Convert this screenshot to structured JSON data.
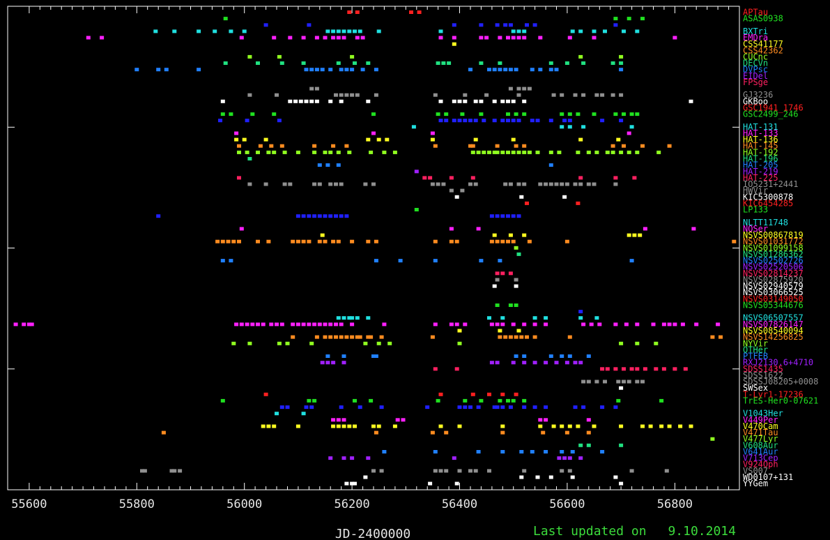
{
  "chart_data": {
    "type": "scatter",
    "xlabel": "JD-2400000",
    "xlim": [
      55560,
      56920
    ],
    "x_ticks": [
      "55600",
      "55800",
      "56000",
      "56200",
      "56400",
      "56600",
      "56800"
    ],
    "footer_label": "Last updated on",
    "footer_date": "9.10.2014",
    "series": [
      {
        "name": "APTau",
        "color": "#ff2020",
        "x": [
          56195,
          56210,
          56310,
          56325
        ]
      },
      {
        "name": "ASAS0938",
        "color": "#20e020",
        "x": [
          55965,
          56690,
          56715,
          56740
        ]
      },
      {
        "name": "",
        "color": "#2020ff",
        "x": [
          56040,
          56120,
          56390,
          56440,
          56470,
          56485,
          56495,
          56525,
          56540,
          56690
        ]
      },
      {
        "name": "BXTri",
        "color": "#20e0e0",
        "x": [
          55835,
          55870,
          55915,
          55945,
          55975,
          56000,
          56155,
          56165,
          56175,
          56185,
          56195,
          56205,
          56215,
          56250,
          56365,
          56500,
          56510,
          56520,
          56610,
          56625,
          56650,
          56670,
          56705,
          56730
        ]
      },
      {
        "name": "EMDra",
        "color": "#ff20ff",
        "x": [
          55710,
          55735,
          55995,
          56055,
          56085,
          56110,
          56135,
          56150,
          56165,
          56175,
          56185,
          56210,
          56220,
          56365,
          56390,
          56440,
          56450,
          56475,
          56490,
          56500,
          56510,
          56520,
          56550,
          56605,
          56650,
          56800
        ]
      },
      {
        "name": "CSS41177",
        "color": "#ffff20",
        "x": [
          56390
        ]
      },
      {
        "name": "CSS42362",
        "color": "#ff8c20",
        "x": []
      },
      {
        "name": "CUCnc",
        "color": "#90ff20",
        "x": [
          56010,
          56065,
          56200,
          56625,
          56700
        ]
      },
      {
        "name": "DECVn",
        "color": "#20e080",
        "x": [
          55965,
          56025,
          56070,
          56110,
          56175,
          56205,
          56230,
          56360,
          56370,
          56380,
          56440,
          56475,
          56570,
          56600,
          56630,
          56685,
          56700
        ]
      },
      {
        "name": "DVPsc",
        "color": "#2080ff",
        "x": [
          55800,
          55840,
          55855,
          55915,
          56115,
          56125,
          56135,
          56145,
          56160,
          56180,
          56190,
          56200,
          56220,
          56245,
          56420,
          56455,
          56465,
          56475,
          56485,
          56495,
          56505,
          56535,
          56550,
          56570,
          56580,
          56700
        ]
      },
      {
        "name": "EIDel",
        "color": "#a020ff",
        "x": []
      },
      {
        "name": "FPSge",
        "color": "#ff2060",
        "x": []
      },
      {
        "name": "",
        "color": "#909090",
        "x": [
          56125,
          56135,
          56495,
          56510,
          56520,
          56530
        ]
      },
      {
        "name": "GJ3236",
        "color": "#909090",
        "x": [
          56010,
          56060,
          56170,
          56180,
          56190,
          56200,
          56210,
          56245,
          56355,
          56410,
          56450,
          56510,
          56575,
          56590,
          56615,
          56630,
          56655,
          56665,
          56685,
          56700
        ]
      },
      {
        "name": "GKBoo",
        "color": "#ffffff",
        "x": [
          55960,
          56085,
          56095,
          56105,
          56115,
          56125,
          56135,
          56160,
          56180,
          56230,
          56365,
          56390,
          56400,
          56410,
          56430,
          56440,
          56465,
          56480,
          56490,
          56500,
          56520,
          56830
        ]
      },
      {
        "name": "GSC1941_1746",
        "color": "#ff2020",
        "x": []
      },
      {
        "name": "GSC2499_246",
        "color": "#20e020",
        "x": [
          55960,
          55975,
          56015,
          56055,
          56240,
          56360,
          56375,
          56405,
          56440,
          56490,
          56505,
          56520,
          56590,
          56605,
          56620,
          56650,
          56690,
          56705,
          56720,
          56730
        ]
      },
      {
        "name": "",
        "color": "#2020ff",
        "x": [
          55955,
          56005,
          56065,
          56365,
          56375,
          56390,
          56400,
          56410,
          56420,
          56430,
          56445,
          56465,
          56480,
          56490,
          56500,
          56510,
          56535,
          56545,
          56570,
          56595,
          56605,
          56665,
          56700
        ]
      },
      {
        "name": "HAT-131",
        "color": "#20e0e0",
        "x": [
          56315,
          56590,
          56605,
          56630,
          56720
        ]
      },
      {
        "name": "HAT-133",
        "color": "#ff20ff",
        "x": [
          55985,
          56240,
          56350,
          56715
        ]
      },
      {
        "name": "HAT-136",
        "color": "#ffff20",
        "x": [
          55985,
          56000,
          56040,
          56230,
          56250,
          56265,
          56350,
          56430,
          56500,
          56625,
          56695
        ]
      },
      {
        "name": "HAT-145",
        "color": "#ff8c20",
        "x": [
          55990,
          56030,
          56050,
          56070,
          56130,
          56165,
          56190,
          56355,
          56420,
          56425,
          56470,
          56505,
          56520,
          56685,
          56705,
          56740,
          56790
        ]
      },
      {
        "name": "HAT-192",
        "color": "#90ff20",
        "x": [
          55990,
          56005,
          56025,
          56045,
          56055,
          56075,
          56100,
          56130,
          56150,
          56160,
          56175,
          56195,
          56235,
          56260,
          56280,
          56425,
          56435,
          56445,
          56455,
          56465,
          56470,
          56480,
          56490,
          56500,
          56510,
          56520,
          56530,
          56545,
          56570,
          56585,
          56620,
          56640,
          56655,
          56675,
          56685,
          56700,
          56715,
          56730,
          56770
        ]
      },
      {
        "name": "HAT-196",
        "color": "#20e080",
        "x": [
          56010
        ]
      },
      {
        "name": "HAT-205",
        "color": "#2080ff",
        "x": [
          56140,
          56155,
          56175,
          56570
        ]
      },
      {
        "name": "HAT-219",
        "color": "#a020ff",
        "x": [
          56320
        ]
      },
      {
        "name": "HAT-225",
        "color": "#ff2060",
        "x": [
          55990,
          56335,
          56345,
          56385,
          56425,
          56625,
          56690,
          56725
        ]
      },
      {
        "name": "IO5231+2441",
        "color": "#909090",
        "x": [
          56010,
          56040,
          56075,
          56085,
          56130,
          56140,
          56160,
          56170,
          56180,
          56225,
          56240,
          56350,
          56360,
          56370,
          56420,
          56430,
          56485,
          56495,
          56510,
          56520,
          56550,
          56560,
          56570,
          56580,
          56590,
          56600,
          56615,
          56625,
          56640,
          56650,
          56690
        ]
      },
      {
        "name": "HWVir",
        "color": "#909090",
        "x": [
          56385,
          56405
        ]
      },
      {
        "name": "KIC5300878",
        "color": "#ffffff",
        "x": [
          56395,
          56515,
          56595
        ]
      },
      {
        "name": "KIC6454285",
        "color": "#ff2020",
        "x": [
          56525,
          56620
        ]
      },
      {
        "name": "LP133",
        "color": "#20e020",
        "x": [
          56320
        ]
      },
      {
        "name": "",
        "color": "#2020ff",
        "x": [
          55840,
          56100,
          56110,
          56120,
          56130,
          56140,
          56150,
          56160,
          56170,
          56180,
          56190,
          56460,
          56470,
          56480,
          56490,
          56500,
          56510
        ]
      },
      {
        "name": "NLTT11748",
        "color": "#20e0e0",
        "x": []
      },
      {
        "name": "NQSer",
        "color": "#ff20ff",
        "x": [
          55995,
          56385,
          56435,
          56745,
          56835
        ]
      },
      {
        "name": "NSVS00867819",
        "color": "#ffff20",
        "x": [
          56145,
          56465,
          56495,
          56520,
          56715,
          56725,
          56735
        ]
      },
      {
        "name": "NSVS01031772",
        "color": "#ff8c20",
        "x": [
          55950,
          55960,
          55970,
          55980,
          55990,
          56025,
          56045,
          56090,
          56100,
          56110,
          56120,
          56140,
          56150,
          56165,
          56175,
          56200,
          56230,
          56245,
          56355,
          56385,
          56395,
          56460,
          56470,
          56480,
          56490,
          56500,
          56530,
          56600,
          56910
        ]
      },
      {
        "name": "NSVS01099158",
        "color": "#90ff20",
        "x": [
          56505
        ]
      },
      {
        "name": "NSVS01286362",
        "color": "#20e080",
        "x": [
          56510
        ]
      },
      {
        "name": "NSVS02502726",
        "color": "#2080ff",
        "x": [
          55960,
          55975,
          56245,
          56290,
          56355,
          56440,
          56475,
          56720
        ]
      },
      {
        "name": "NSVS02520506",
        "color": "#a020ff",
        "x": []
      },
      {
        "name": "NSVS02814237",
        "color": "#ff2060",
        "x": [
          56470,
          56480,
          56495
        ]
      },
      {
        "name": "NSVS02875920",
        "color": "#909090",
        "x": [
          56470,
          56505
        ]
      },
      {
        "name": "NSVS02940579",
        "color": "#ffffff",
        "x": [
          56465,
          56505
        ]
      },
      {
        "name": "NSVS03066525",
        "color": "#ffffff",
        "x": []
      },
      {
        "name": "NSVS03149050",
        "color": "#ff2020",
        "x": []
      },
      {
        "name": "NSVS05344676",
        "color": "#20e020",
        "x": [
          56470,
          56495,
          56505
        ]
      },
      {
        "name": "",
        "color": "#2020ff",
        "x": [
          56625
        ]
      },
      {
        "name": "NSVS06507557",
        "color": "#20e0e0",
        "x": [
          56175,
          56185,
          56195,
          56200,
          56210,
          56230,
          56455,
          56480,
          56540,
          56560,
          56625,
          56655
        ]
      },
      {
        "name": "NSVS07826147",
        "color": "#ff20ff",
        "x": [
          55575,
          55590,
          55600,
          55605,
          55985,
          55995,
          56005,
          56015,
          56025,
          56035,
          56050,
          56060,
          56070,
          56090,
          56100,
          56110,
          56120,
          56130,
          56140,
          56150,
          56160,
          56170,
          56180,
          56200,
          56260,
          56355,
          56385,
          56395,
          56410,
          56460,
          56470,
          56480,
          56500,
          56520,
          56540,
          56560,
          56630,
          56645,
          56660,
          56690,
          56710,
          56730,
          56760,
          56780,
          56790,
          56800,
          56815,
          56840,
          56880
        ]
      },
      {
        "name": "NSVS08540094",
        "color": "#ffff20",
        "x": [
          56400,
          56475,
          56510
        ]
      },
      {
        "name": "NSVS14256825",
        "color": "#ff8c20",
        "x": [
          56090,
          56135,
          56150,
          56160,
          56170,
          56180,
          56190,
          56200,
          56210,
          56215,
          56230,
          56235,
          56255,
          56350,
          56475,
          56485,
          56495,
          56505,
          56515,
          56525,
          56540,
          56605,
          56870,
          56885
        ]
      },
      {
        "name": "NYVir",
        "color": "#90ff20",
        "x": [
          55980,
          56010,
          56065,
          56080,
          56125,
          56225,
          56250,
          56270,
          56400,
          56700,
          56730,
          56765
        ]
      },
      {
        "name": "OTHer",
        "color": "#20e080",
        "x": []
      },
      {
        "name": "PTFEB",
        "color": "#2080ff",
        "x": [
          56155,
          56185,
          56240,
          56245,
          56505,
          56520,
          56570,
          56590,
          56605,
          56640
        ]
      },
      {
        "name": "RXJ2130.6+4710",
        "color": "#a020ff",
        "x": [
          56145,
          56155,
          56165,
          56185,
          56460,
          56470,
          56500,
          56520,
          56540,
          56560,
          56580,
          56600,
          56615,
          56625
        ]
      },
      {
        "name": "SDSS1435",
        "color": "#ff2060",
        "x": [
          56355,
          56395,
          56665,
          56675,
          56690,
          56705,
          56720,
          56730,
          56745,
          56765,
          56780,
          56800,
          56820
        ]
      },
      {
        "name": "SDSS1622",
        "color": "#909090",
        "x": []
      },
      {
        "name": "SDSSJ08205+0008",
        "color": "#909090",
        "x": [
          56630,
          56640,
          56655,
          56670,
          56695,
          56705,
          56715,
          56730,
          56740
        ]
      },
      {
        "name": "SWSex",
        "color": "#ffffff",
        "x": [
          56700
        ]
      },
      {
        "name": "T-Lyr1-17236",
        "color": "#ff2020",
        "x": [
          56040,
          56365,
          56425,
          56455,
          56480,
          56505
        ]
      },
      {
        "name": "TrES-Her0-07621",
        "color": "#20e020",
        "x": [
          55960,
          56120,
          56130,
          56205,
          56235,
          56360,
          56410,
          56440,
          56475,
          56490,
          56500,
          56520,
          56695,
          56775
        ]
      },
      {
        "name": "",
        "color": "#2020ff",
        "x": [
          56070,
          56080,
          56115,
          56125,
          56180,
          56215,
          56255,
          56340,
          56400,
          56410,
          56420,
          56435,
          56465,
          56470,
          56480,
          56495,
          56520,
          56540,
          56560,
          56615,
          56630,
          56665,
          56690
        ]
      },
      {
        "name": "V1043Her",
        "color": "#20e0e0",
        "x": [
          56060,
          56110
        ]
      },
      {
        "name": "V449Per",
        "color": "#ff20ff",
        "x": [
          56165,
          56175,
          56185,
          56285,
          56295,
          56550,
          56560,
          56640
        ]
      },
      {
        "name": "V470Cam",
        "color": "#ffff20",
        "x": [
          56035,
          56045,
          56055,
          56100,
          56165,
          56175,
          56185,
          56195,
          56205,
          56240,
          56250,
          56280,
          56365,
          56400,
          56480,
          56550,
          56575,
          56590,
          56605,
          56620,
          56650,
          56700,
          56740,
          56755,
          56775,
          56790,
          56810,
          56830
        ]
      },
      {
        "name": "V471Tau",
        "color": "#ff8c20",
        "x": [
          55850,
          56245,
          56350,
          56375,
          56480,
          56555,
          56600,
          56640
        ]
      },
      {
        "name": "V477Lyr",
        "color": "#90ff20",
        "x": [
          56870
        ]
      },
      {
        "name": "V608Aur",
        "color": "#20e080",
        "x": [
          56625,
          56640,
          56700
        ]
      },
      {
        "name": "V641Aur",
        "color": "#2080ff",
        "x": [
          56260,
          56355,
          56435,
          56480,
          56515,
          56535,
          56560,
          56590,
          56610,
          56665
        ]
      },
      {
        "name": "V713Cep",
        "color": "#a020ff",
        "x": [
          56160,
          56185,
          56200,
          56230,
          56390,
          56585,
          56595,
          56605,
          56625
        ]
      },
      {
        "name": "V924Oph",
        "color": "#ff2060",
        "x": []
      },
      {
        "name": "VS007",
        "color": "#909090",
        "x": [
          55810,
          55815,
          55865,
          55870,
          55880,
          56240,
          56255,
          56355,
          56365,
          56375,
          56400,
          56420,
          56430,
          56455,
          56520,
          56590,
          56605,
          56720,
          56785
        ]
      },
      {
        "name": "WD0107+131",
        "color": "#ffffff",
        "x": [
          56225,
          56515,
          56545,
          56570,
          56610,
          56690
        ]
      },
      {
        "name": "YYGem",
        "color": "#ffffff",
        "x": [
          56190,
          56200,
          56205,
          56345,
          56395,
          56700
        ]
      }
    ]
  }
}
